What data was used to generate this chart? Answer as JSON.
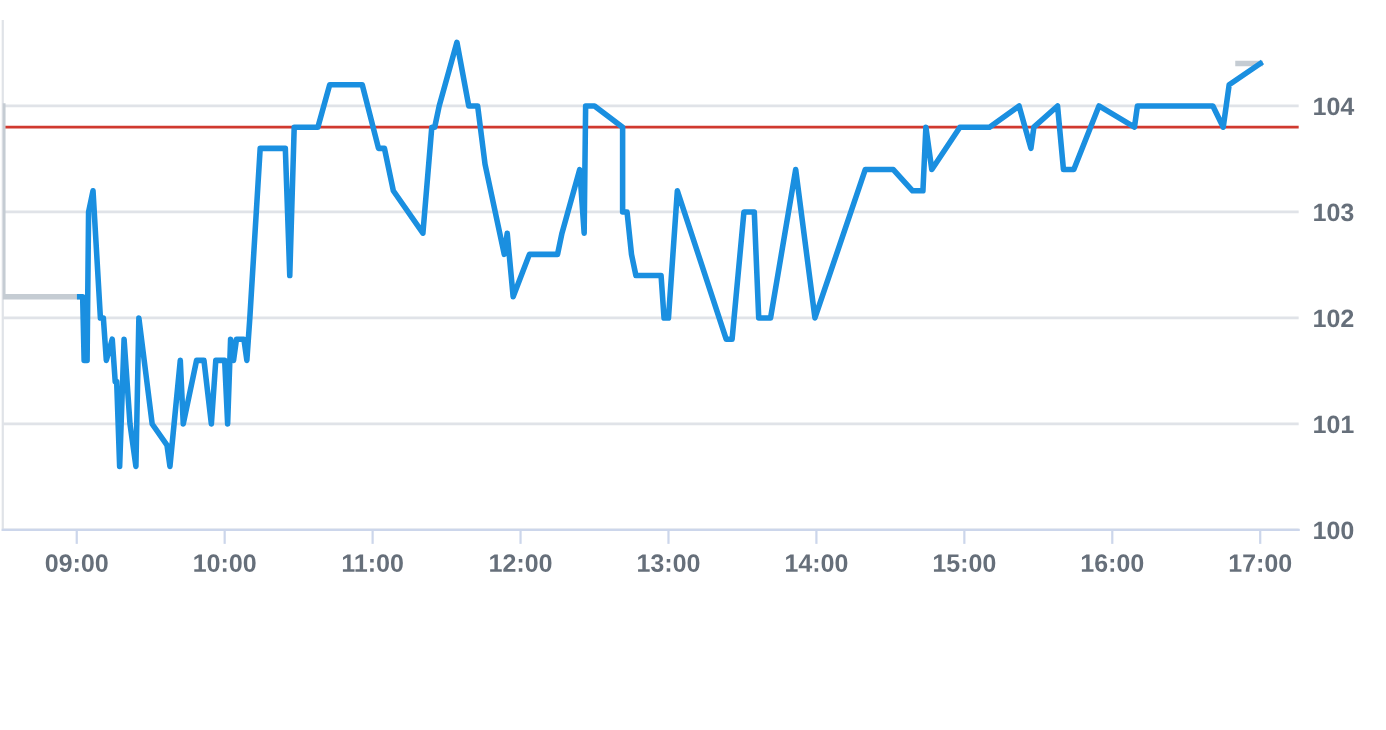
{
  "chart_data": {
    "type": "line",
    "xlim": [
      8.5,
      17.26
    ],
    "ylim": [
      100,
      104.8
    ],
    "xticks": [
      {
        "value": 9,
        "label": "09:00"
      },
      {
        "value": 10,
        "label": "10:00"
      },
      {
        "value": 11,
        "label": "11:00"
      },
      {
        "value": 12,
        "label": "12:00"
      },
      {
        "value": 13,
        "label": "13:00"
      },
      {
        "value": 14,
        "label": "14:00"
      },
      {
        "value": 15,
        "label": "15:00"
      },
      {
        "value": 16,
        "label": "16:00"
      },
      {
        "value": 17,
        "label": "17:00"
      }
    ],
    "yticks": [
      100,
      101,
      102,
      103,
      104
    ],
    "grid": "y",
    "legend": false,
    "marker": "none",
    "line_style": "solid",
    "ref_lines": [
      {
        "axis": "y",
        "value": 103.8,
        "color": "#d0392f"
      }
    ],
    "series": [
      {
        "color": "#c5ccd3",
        "x": [
          8.5,
          8.5,
          9.02,
          9.5,
          16.85,
          17.0
        ],
        "values": [
          104.0,
          102.2,
          102.2,
          null,
          104.4,
          104.4
        ]
      },
      {
        "color": "#1a8fe0",
        "x": [
          9.02,
          9.04,
          9.05,
          9.07,
          9.08,
          9.11,
          9.16,
          9.18,
          9.2,
          9.24,
          9.26,
          9.27,
          9.29,
          9.32,
          9.36,
          9.4,
          9.42,
          9.51,
          9.61,
          9.63,
          9.7,
          9.72,
          9.81,
          9.86,
          9.91,
          9.94,
          10.0,
          10.02,
          10.04,
          10.06,
          10.08,
          10.13,
          10.15,
          10.17,
          10.24,
          10.41,
          10.44,
          10.47,
          10.63,
          10.71,
          10.93,
          11.04,
          11.08,
          11.14,
          11.34,
          11.4,
          11.42,
          11.45,
          11.57,
          11.65,
          11.71,
          11.76,
          11.89,
          11.91,
          11.95,
          12.06,
          12.25,
          12.28,
          12.4,
          12.43,
          12.44,
          12.5,
          12.69,
          12.69,
          12.72,
          12.75,
          12.78,
          12.95,
          12.97,
          13.0,
          13.06,
          13.39,
          13.43,
          13.51,
          13.58,
          13.61,
          13.69,
          13.86,
          13.99,
          14.33,
          14.52,
          14.65,
          14.72,
          14.74,
          14.78,
          14.97,
          15.17,
          15.37,
          15.45,
          15.47,
          15.63,
          15.67,
          15.74,
          15.91,
          16.15,
          16.17,
          16.68,
          16.75,
          16.79,
          17.0
        ],
        "values": [
          102.2,
          102.2,
          101.6,
          101.6,
          103.0,
          103.2,
          102.0,
          102.0,
          101.6,
          101.8,
          101.4,
          101.4,
          100.6,
          101.8,
          101.0,
          100.6,
          102.0,
          101.0,
          100.8,
          100.6,
          101.6,
          101.0,
          101.6,
          101.6,
          101.0,
          101.6,
          101.6,
          101.0,
          101.8,
          101.6,
          101.8,
          101.8,
          101.6,
          102.0,
          103.6,
          103.6,
          102.4,
          103.8,
          103.8,
          104.2,
          104.2,
          103.6,
          103.6,
          103.2,
          102.8,
          103.8,
          103.8,
          104.0,
          104.6,
          104.0,
          104.0,
          103.45,
          102.6,
          102.8,
          102.2,
          102.6,
          102.6,
          102.8,
          103.4,
          102.8,
          104.0,
          104.0,
          103.8,
          103.0,
          103.0,
          102.6,
          102.4,
          102.4,
          102.0,
          102.0,
          103.2,
          101.8,
          101.8,
          103.0,
          103.0,
          102.0,
          102.0,
          103.4,
          102.0,
          103.4,
          103.4,
          103.2,
          103.2,
          103.8,
          103.4,
          103.8,
          103.8,
          104.0,
          103.6,
          103.8,
          104.0,
          103.4,
          103.4,
          104.0,
          103.8,
          104.0,
          104.0,
          103.8,
          104.2,
          104.4
        ]
      }
    ]
  }
}
